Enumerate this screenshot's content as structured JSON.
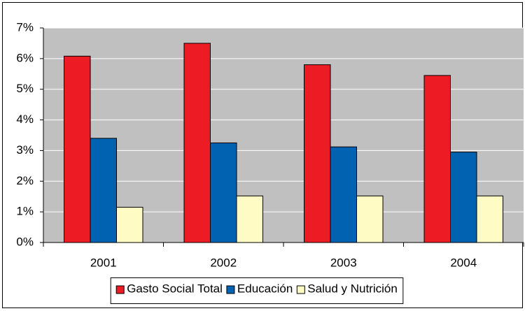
{
  "chart_data": {
    "type": "bar",
    "categories": [
      "2001",
      "2002",
      "2003",
      "2004"
    ],
    "series": [
      {
        "name": "Gasto Social Total",
        "color": "#ed1c24",
        "values": [
          6.08,
          6.5,
          5.8,
          5.45
        ]
      },
      {
        "name": "Educación",
        "color": "#0062b0",
        "values": [
          3.4,
          3.25,
          3.12,
          2.95
        ]
      },
      {
        "name": "Salud y Nutrición",
        "color": "#fffbc4",
        "values": [
          1.15,
          1.52,
          1.52,
          1.52
        ]
      }
    ],
    "ylim": [
      0,
      7
    ],
    "yticks": [
      {
        "value": 0,
        "label": "0%"
      },
      {
        "value": 1,
        "label": "1%"
      },
      {
        "value": 2,
        "label": "2%"
      },
      {
        "value": 3,
        "label": "3%"
      },
      {
        "value": 4,
        "label": "4%"
      },
      {
        "value": 5,
        "label": "5%"
      },
      {
        "value": 6,
        "label": "6%"
      },
      {
        "value": 7,
        "label": "7%"
      }
    ],
    "grid": true,
    "plot_background": "#c0c0c0",
    "legend": "bottom"
  }
}
